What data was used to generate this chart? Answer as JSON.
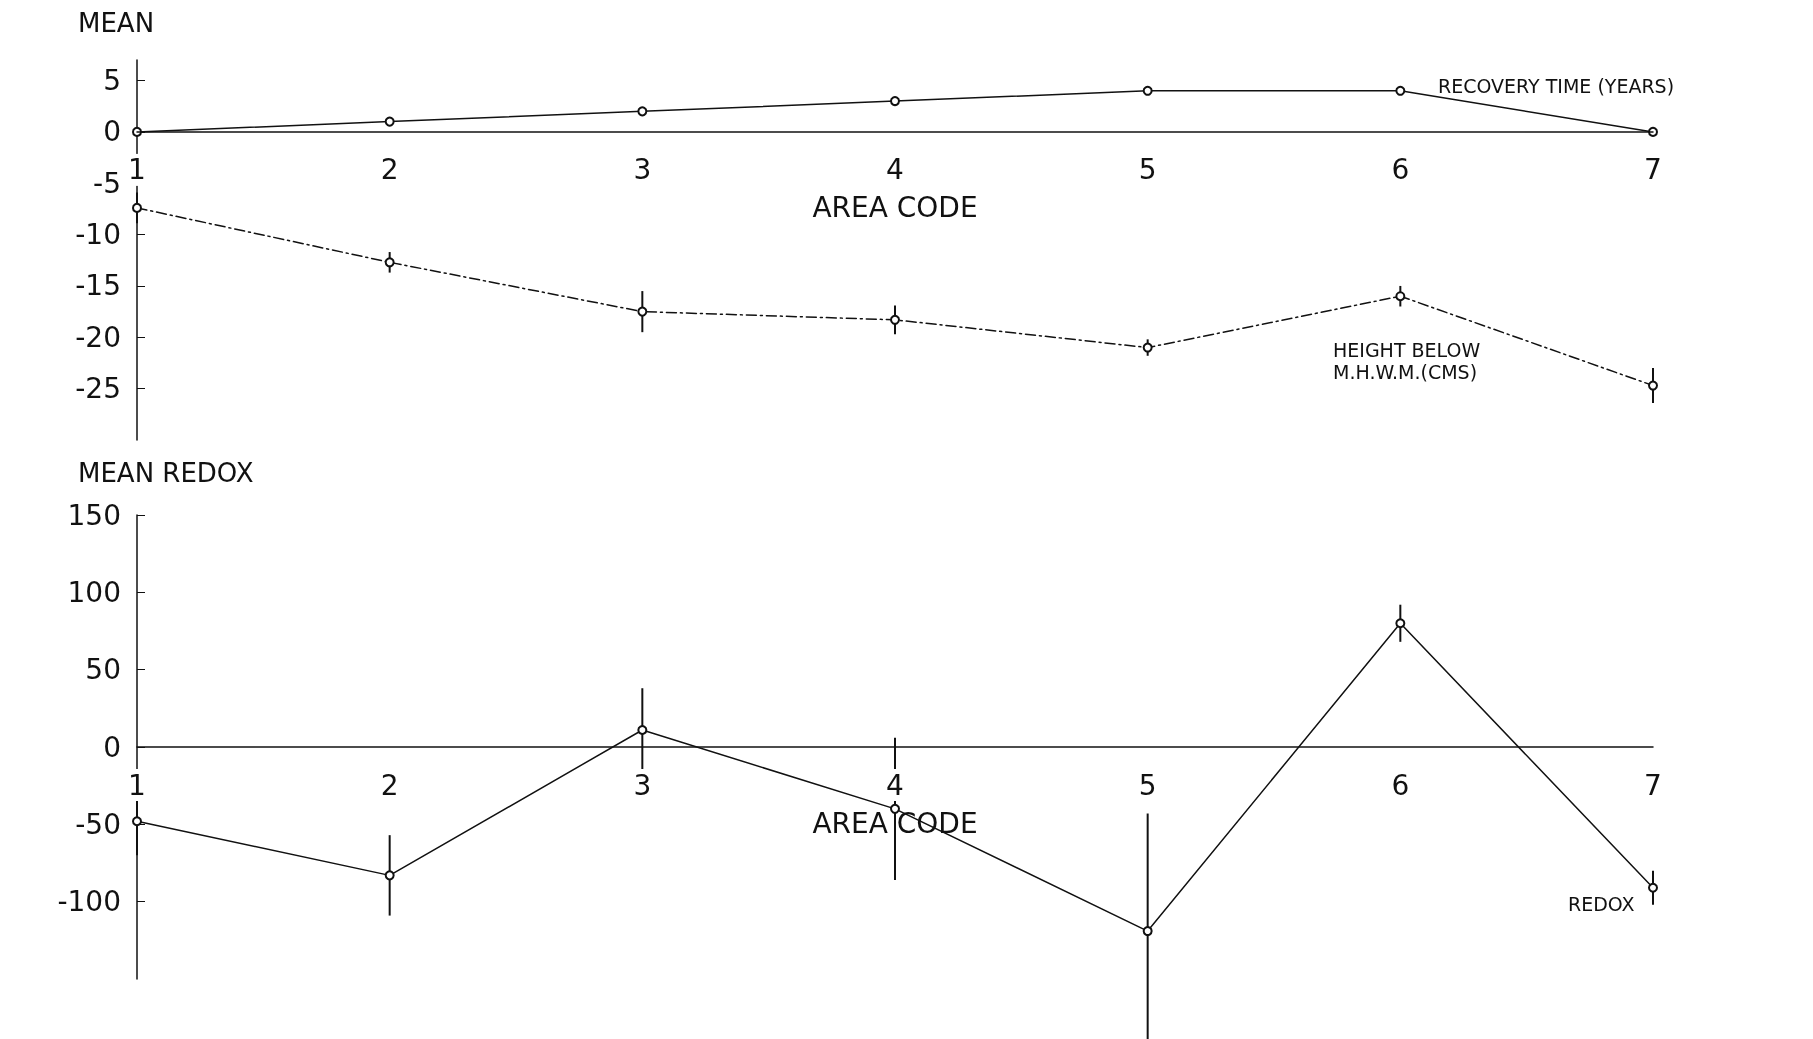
{
  "chart_data": [
    {
      "type": "line",
      "ylabel": "MEAN",
      "xlabel": "AREA CODE",
      "categories": [
        "1",
        "2",
        "3",
        "4",
        "5",
        "6",
        "7"
      ],
      "ylim": [
        -30,
        7
      ],
      "yticks": [
        -25,
        -20,
        -15,
        -10,
        -5,
        0,
        5
      ],
      "grid": false,
      "legend": false,
      "marker": "circle",
      "series": [
        {
          "name": "RECOVERY TIME (YEARS)",
          "color": "#111111",
          "line_style": "solid",
          "values": [
            0,
            1,
            2,
            3,
            4,
            4,
            0
          ]
        },
        {
          "name": "HEIGHT BELOW M.H.W.M.(CMS)",
          "color": "#111111",
          "line_style": "dashed",
          "values": [
            -7.4,
            -12.7,
            -17.5,
            -18.3,
            -21,
            -16,
            -24.7
          ],
          "errors": [
            1.5,
            1,
            2,
            1.4,
            0.8,
            1,
            1.7
          ]
        }
      ]
    },
    {
      "type": "line",
      "ylabel": "MEAN REDOX",
      "xlabel": "AREA CODE",
      "categories": [
        "1",
        "2",
        "3",
        "4",
        "5",
        "6",
        "7"
      ],
      "ylim": [
        -150,
        150
      ],
      "yticks": [
        -100,
        -50,
        0,
        50,
        100,
        150
      ],
      "grid": false,
      "legend": false,
      "marker": "circle",
      "series": [
        {
          "name": "REDOX",
          "color": "#111111",
          "line_style": "solid",
          "values": [
            -48,
            -83,
            11,
            -40,
            -119,
            80,
            -91
          ],
          "errors": [
            22,
            26,
            27,
            46,
            76,
            12,
            11
          ]
        }
      ]
    }
  ]
}
